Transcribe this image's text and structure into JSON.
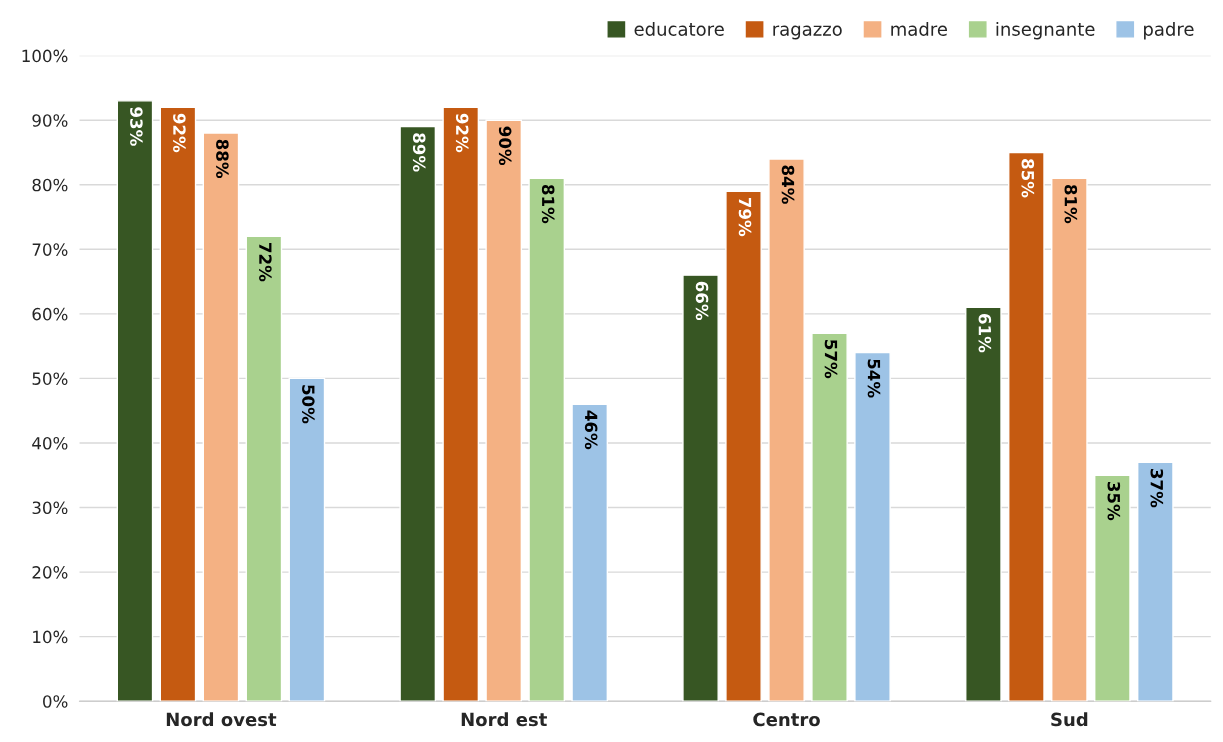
{
  "chart_data": {
    "type": "bar",
    "categories": [
      "Nord ovest",
      "Nord est",
      "Centro",
      "Sud"
    ],
    "series": [
      {
        "name": "educatore",
        "color": "#375623",
        "values": [
          93,
          89,
          66,
          61
        ],
        "value_labels": [
          "93%",
          "89%",
          "66%",
          "61%"
        ]
      },
      {
        "name": "ragazzo",
        "color": "#c55a11",
        "values": [
          92,
          92,
          79,
          85
        ],
        "value_labels": [
          "92%",
          "92%",
          "79%",
          "85%"
        ]
      },
      {
        "name": "madre",
        "color": "#f4b183",
        "values": [
          88,
          90,
          84,
          81
        ],
        "value_labels": [
          "88%",
          "90%",
          "84%",
          "81%"
        ]
      },
      {
        "name": "insegnante",
        "color": "#a9d18e",
        "values": [
          72,
          81,
          57,
          35
        ],
        "value_labels": [
          "72%",
          "81%",
          "57%",
          "35%"
        ]
      },
      {
        "name": "padre",
        "color": "#9dc3e6",
        "values": [
          50,
          46,
          54,
          37
        ],
        "value_labels": [
          "50%",
          "46%",
          "54%",
          "37%"
        ]
      }
    ],
    "ylim": [
      0,
      100
    ],
    "yticks": [
      {
        "value": 0,
        "label": "0%"
      },
      {
        "value": 10,
        "label": "10%"
      },
      {
        "value": 20,
        "label": "20%"
      },
      {
        "value": 30,
        "label": "30%"
      },
      {
        "value": 40,
        "label": "40%"
      },
      {
        "value": 50,
        "label": "50%"
      },
      {
        "value": 60,
        "label": "60%"
      },
      {
        "value": 70,
        "label": "70%"
      },
      {
        "value": 80,
        "label": "80%"
      },
      {
        "value": 90,
        "label": "90%"
      },
      {
        "value": 100,
        "label": "100%"
      }
    ],
    "grid": "y",
    "legend": "top right"
  }
}
